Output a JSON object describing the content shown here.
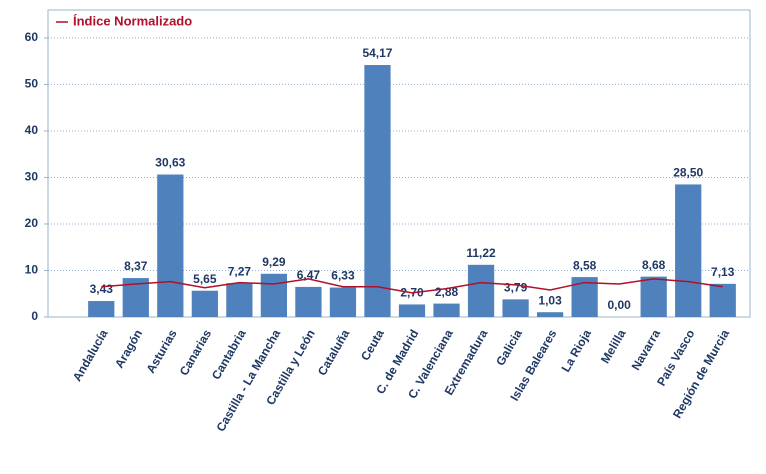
{
  "chart_data": {
    "type": "bar",
    "categories": [
      "Andalucía",
      "Aragón",
      "Asturias",
      "Canarias",
      "Cantabria",
      "Castilla - La Mancha",
      "Castilla y León",
      "Cataluña",
      "Ceuta",
      "C. de Madrid",
      "C. Valenciana",
      "Extremadura",
      "Galicia",
      "Islas Baleares",
      "La Rioja",
      "Melilla",
      "Navarra",
      "País Vasco",
      "Región de Murcia"
    ],
    "series": [
      {
        "type": "bar",
        "color": "#4f81bd",
        "values": [
          3.43,
          8.37,
          30.63,
          5.65,
          7.27,
          9.29,
          6.47,
          6.33,
          54.17,
          2.7,
          2.88,
          11.22,
          3.79,
          1.03,
          8.58,
          0.0,
          8.68,
          28.5,
          7.13
        ],
        "value_labels": [
          "3,43",
          "8,37",
          "30,63",
          "5,65",
          "7,27",
          "9,29",
          "6,47",
          "6,33",
          "54,17",
          "2,70",
          "2,88",
          "11,22",
          "3,79",
          "1,03",
          "8,58",
          "0,00",
          "8,68",
          "28,50",
          "7,13"
        ]
      },
      {
        "type": "line",
        "name": "Índice Normalizado",
        "color": "#b0102a",
        "values": [
          6.5,
          7.1,
          7.6,
          6.3,
          7.4,
          7.1,
          8.2,
          6.5,
          6.5,
          5.2,
          6.1,
          7.4,
          6.9,
          5.8,
          7.4,
          7.1,
          8.2,
          7.6,
          6.5
        ]
      }
    ],
    "ylim": [
      0,
      66
    ],
    "yticks": [
      0,
      10,
      20,
      30,
      40,
      50,
      60
    ],
    "grid": true,
    "legend": "top-left"
  }
}
